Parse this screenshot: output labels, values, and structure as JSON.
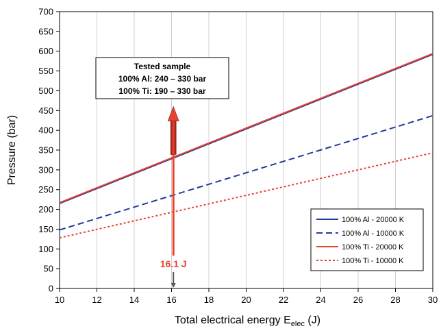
{
  "chart_data": {
    "type": "line",
    "title": "",
    "xlabel": "Total electrical energy E",
    "xlabel_sub": "elec",
    "xlabel_unit": " (J)",
    "ylabel": "Pressure (bar)",
    "xlim": [
      10,
      30
    ],
    "ylim": [
      0,
      700
    ],
    "x_ticks": [
      10,
      12,
      14,
      16,
      18,
      20,
      22,
      24,
      26,
      28,
      30
    ],
    "y_ticks": [
      0,
      50,
      100,
      150,
      200,
      250,
      300,
      350,
      400,
      450,
      500,
      550,
      600,
      650,
      700
    ],
    "grid": "x-only",
    "legend_position": "right",
    "series": [
      {
        "name": "100% Al - 20000 K",
        "x": [
          10,
          30
        ],
        "y": [
          215,
          592
        ],
        "color": "#1f3c99",
        "style": "solid"
      },
      {
        "name": "100% Al - 10000 K",
        "x": [
          10,
          30
        ],
        "y": [
          148,
          437
        ],
        "color": "#1f3c99",
        "style": "dashed"
      },
      {
        "name": "100% Ti - 20000 K",
        "x": [
          10,
          30
        ],
        "y": [
          217,
          594
        ],
        "color": "#e8432f",
        "style": "solid"
      },
      {
        "name": "100% Ti - 10000 K",
        "x": [
          10,
          30
        ],
        "y": [
          128,
          343
        ],
        "color": "#e8432f",
        "style": "dotted"
      }
    ],
    "annotation_box": {
      "lines": [
        "Tested sample",
        "100% Al: 240 – 330 bar",
        "100% Ti: 190 – 330 bar"
      ]
    },
    "marker": {
      "x": 16.1,
      "label": "16.1 J",
      "y_top": 460,
      "color": "#e8432f"
    }
  }
}
